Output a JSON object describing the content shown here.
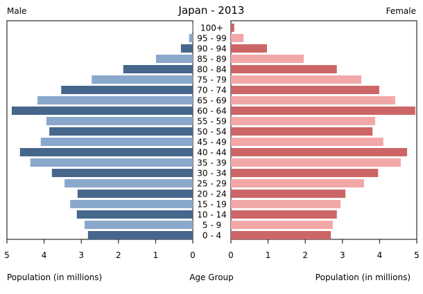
{
  "chart_data": {
    "type": "bar",
    "title": "Japan - 2013",
    "left_label": "Male",
    "right_label": "Female",
    "xlabel_left": "Population (in millions)",
    "xlabel_center": "Age Group",
    "xlabel_right": "Population (in millions)",
    "xlim": [
      0,
      5
    ],
    "x_ticks": [
      "0",
      "1",
      "2",
      "3",
      "4",
      "5"
    ],
    "categories": [
      "100+",
      "95 - 99",
      "90 - 94",
      "85 - 89",
      "80 - 84",
      "75 - 79",
      "70 - 74",
      "65 - 69",
      "60 - 64",
      "55 - 59",
      "50 - 54",
      "45 - 49",
      "40 - 44",
      "35 - 39",
      "30 - 34",
      "25 - 29",
      "20 - 24",
      "15 - 19",
      "10 - 14",
      "5 - 9",
      "0 - 4"
    ],
    "series": [
      {
        "name": "Male",
        "values": [
          0.01,
          0.1,
          0.32,
          0.99,
          1.87,
          2.72,
          3.54,
          4.18,
          4.87,
          3.94,
          3.86,
          4.09,
          4.65,
          4.37,
          3.79,
          3.45,
          3.1,
          3.3,
          3.12,
          2.91,
          2.82
        ]
      },
      {
        "name": "Female",
        "values": [
          0.09,
          0.34,
          0.97,
          1.96,
          2.85,
          3.51,
          3.99,
          4.42,
          4.96,
          3.88,
          3.81,
          4.1,
          4.74,
          4.57,
          3.96,
          3.58,
          3.08,
          2.95,
          2.85,
          2.74,
          2.69
        ]
      }
    ],
    "colors": {
      "male_dark": "#46668c",
      "male_light": "#8aa8cc",
      "female_dark": "#cc6666",
      "female_light": "#f2a8a8"
    }
  }
}
